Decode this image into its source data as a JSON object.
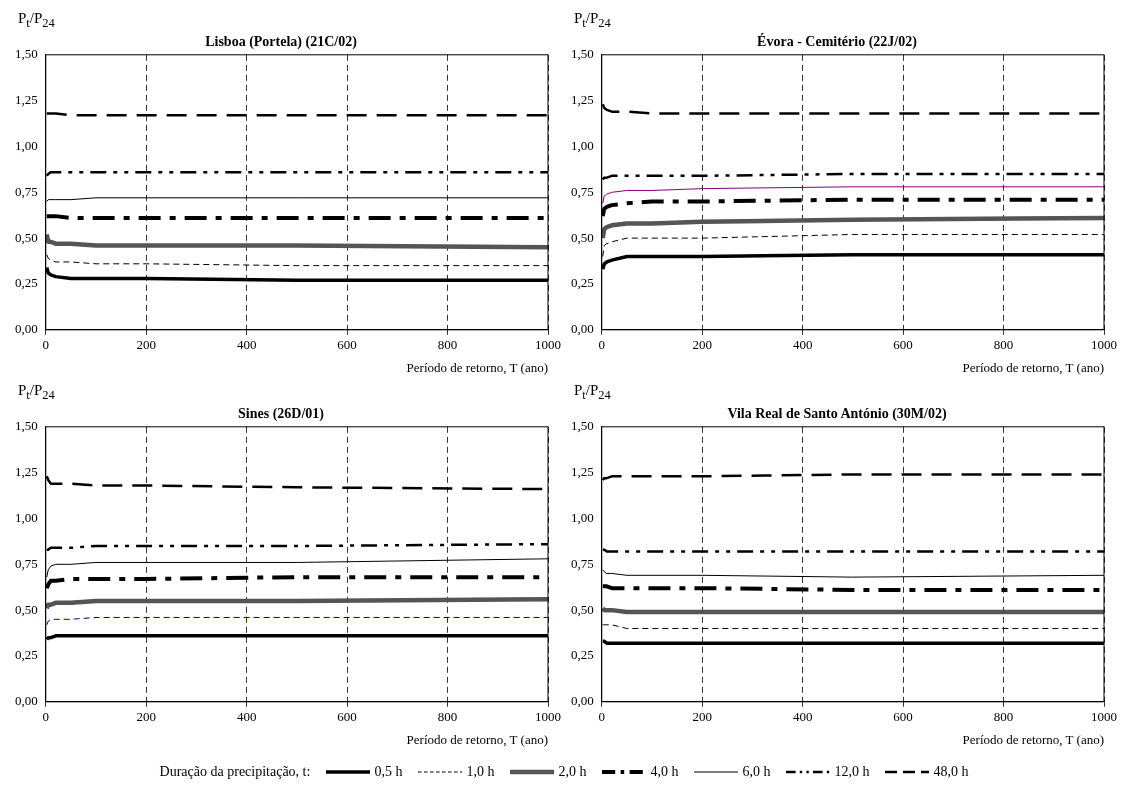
{
  "chart_data": [
    {
      "type": "line",
      "title": "Lisboa (Portela) (21C/02)",
      "xlabel": "Período de retorno, T (ano)",
      "ylabel": "P$_{t}$/P$_{24}$",
      "x": [
        2,
        5,
        10,
        20,
        50,
        100,
        200,
        500,
        1000
      ],
      "xlim": [
        0,
        1000
      ],
      "xticks": [
        0,
        200,
        400,
        600,
        800,
        1000
      ],
      "ylim": [
        0,
        1.5
      ],
      "yticks": [
        {
          "value": 0,
          "label": "0,00"
        },
        {
          "value": 0.25,
          "label": "0,25"
        },
        {
          "value": 0.5,
          "label": "0,50"
        },
        {
          "value": 0.75,
          "label": "0,75"
        },
        {
          "value": 1,
          "label": "1,00"
        },
        {
          "value": 1.25,
          "label": "1,25"
        },
        {
          "value": 1.5,
          "label": "1,50"
        }
      ],
      "grid": "x",
      "marker": "none",
      "legend": "bottom",
      "legend_title": "Duração da precipitação, t:",
      "series": [
        {
          "name": "0,5 h",
          "color": "#000000",
          "line_style": "solid",
          "values": [
            0.34,
            0.31,
            0.3,
            0.29,
            0.28,
            0.28,
            0.28,
            0.27,
            0.27
          ]
        },
        {
          "name": "1,0 h",
          "color": "#000000",
          "line_style": "dashed",
          "values": [
            0.41,
            0.39,
            0.38,
            0.37,
            0.37,
            0.36,
            0.36,
            0.35,
            0.35
          ]
        },
        {
          "name": "2,0 h",
          "color": "#555555",
          "line_style": "solid",
          "values": [
            0.52,
            0.48,
            0.48,
            0.47,
            0.47,
            0.46,
            0.46,
            0.46,
            0.45
          ]
        },
        {
          "name": "4,0 h",
          "color": "#000000",
          "line_style": "dashed",
          "values": [
            0.62,
            0.62,
            0.62,
            0.62,
            0.61,
            0.61,
            0.61,
            0.61,
            0.61
          ]
        },
        {
          "name": "6,0 h",
          "color": "#000000",
          "line_style": "solid",
          "values": [
            0.7,
            0.71,
            0.71,
            0.71,
            0.71,
            0.72,
            0.72,
            0.72,
            0.72
          ]
        },
        {
          "name": "12,0 h",
          "color": "#000000",
          "line_style": "dashed",
          "values": [
            0.84,
            0.85,
            0.86,
            0.86,
            0.86,
            0.86,
            0.86,
            0.86,
            0.86
          ]
        },
        {
          "name": "48,0 h",
          "color": "#000000",
          "line_style": "dashed",
          "values": [
            1.18,
            1.18,
            1.18,
            1.18,
            1.17,
            1.17,
            1.17,
            1.17,
            1.17
          ]
        }
      ]
    },
    {
      "type": "line",
      "title": "Évora - Cemitério (22J/02)",
      "xlabel": "Período de retorno, T (ano)",
      "ylabel": "P$_{t}$/P$_{24}$",
      "x": [
        2,
        5,
        10,
        20,
        50,
        100,
        200,
        500,
        1000
      ],
      "xlim": [
        0,
        1000
      ],
      "xticks": [
        0,
        200,
        400,
        600,
        800,
        1000
      ],
      "ylim": [
        0,
        1.5
      ],
      "yticks": [
        {
          "value": 0,
          "label": "0,00"
        },
        {
          "value": 0.25,
          "label": "0,25"
        },
        {
          "value": 0.5,
          "label": "0,50"
        },
        {
          "value": 0.75,
          "label": "0,75"
        },
        {
          "value": 1,
          "label": "1,00"
        },
        {
          "value": 1.25,
          "label": "1,25"
        },
        {
          "value": 1.5,
          "label": "1,50"
        }
      ],
      "grid": "x",
      "marker": "none",
      "series": [
        {
          "color": "#000000",
          "line_style": "solid",
          "values": [
            0.33,
            0.36,
            0.37,
            0.38,
            0.4,
            0.4,
            0.4,
            0.41,
            0.41
          ]
        },
        {
          "color": "#000000",
          "line_style": "dashed",
          "values": [
            0.4,
            0.46,
            0.47,
            0.48,
            0.5,
            0.5,
            0.5,
            0.52,
            0.52
          ]
        },
        {
          "color": "#555555",
          "line_style": "solid",
          "values": [
            0.5,
            0.55,
            0.56,
            0.57,
            0.58,
            0.58,
            0.59,
            0.6,
            0.61
          ]
        },
        {
          "color": "#000000",
          "line_style": "dashed",
          "values": [
            0.62,
            0.66,
            0.67,
            0.68,
            0.69,
            0.7,
            0.7,
            0.71,
            0.71
          ]
        },
        {
          "color": "#800080",
          "line_style": "solid",
          "values": [
            0.69,
            0.73,
            0.74,
            0.75,
            0.76,
            0.76,
            0.77,
            0.78,
            0.78
          ]
        },
        {
          "color": "#000000",
          "line_style": "dashed",
          "values": [
            0.82,
            0.83,
            0.83,
            0.84,
            0.84,
            0.84,
            0.84,
            0.85,
            0.85
          ]
        },
        {
          "color": "#000000",
          "line_style": "dashed",
          "values": [
            1.23,
            1.21,
            1.2,
            1.19,
            1.19,
            1.18,
            1.18,
            1.18,
            1.18
          ]
        }
      ]
    },
    {
      "type": "line",
      "title": "Sines (26D/01)",
      "xlabel": "Período de retorno, T (ano)",
      "ylabel": "P$_{t}$/P$_{24}$",
      "x": [
        2,
        5,
        10,
        20,
        50,
        100,
        200,
        500,
        1000
      ],
      "xlim": [
        0,
        1000
      ],
      "xticks": [
        0,
        200,
        400,
        600,
        800,
        1000
      ],
      "ylim": [
        0,
        1.5
      ],
      "yticks": [
        {
          "value": 0,
          "label": "0,00"
        },
        {
          "value": 0.25,
          "label": "0,25"
        },
        {
          "value": 0.5,
          "label": "0,50"
        },
        {
          "value": 0.75,
          "label": "0,75"
        },
        {
          "value": 1,
          "label": "1,00"
        },
        {
          "value": 1.25,
          "label": "1,25"
        },
        {
          "value": 1.5,
          "label": "1,50"
        }
      ],
      "grid": "x",
      "marker": "none",
      "series": [
        {
          "color": "#000000",
          "line_style": "solid",
          "values": [
            0.34,
            0.35,
            0.35,
            0.36,
            0.36,
            0.36,
            0.36,
            0.36,
            0.36
          ]
        },
        {
          "color": "#000080",
          "line_style": "dashed",
          "values": [
            0.42,
            0.44,
            0.45,
            0.45,
            0.45,
            0.46,
            0.46,
            0.46,
            0.46
          ]
        },
        {
          "color": "#555555",
          "line_style": "solid",
          "values": [
            0.51,
            0.53,
            0.53,
            0.54,
            0.54,
            0.55,
            0.55,
            0.55,
            0.56
          ]
        },
        {
          "color": "#000000",
          "line_style": "dashed",
          "values": [
            0.62,
            0.64,
            0.66,
            0.66,
            0.67,
            0.67,
            0.67,
            0.68,
            0.68
          ]
        },
        {
          "color": "#000000",
          "line_style": "solid",
          "values": [
            0.68,
            0.72,
            0.74,
            0.75,
            0.75,
            0.76,
            0.76,
            0.76,
            0.78
          ]
        },
        {
          "color": "#000000",
          "line_style": "dashed",
          "values": [
            0.83,
            0.83,
            0.84,
            0.84,
            0.84,
            0.85,
            0.85,
            0.85,
            0.86
          ]
        },
        {
          "color": "#000000",
          "line_style": "dashed",
          "values": [
            1.23,
            1.21,
            1.19,
            1.19,
            1.19,
            1.18,
            1.18,
            1.17,
            1.16
          ]
        }
      ]
    },
    {
      "type": "line",
      "title": "Vila Real de Santo António (30M/02)",
      "xlabel": "Período de retorno, T (ano)",
      "ylabel": "P$_{t}$/P$_{24}$",
      "x": [
        2,
        5,
        10,
        20,
        50,
        100,
        200,
        500,
        1000
      ],
      "xlim": [
        0,
        1000
      ],
      "xticks": [
        0,
        200,
        400,
        600,
        800,
        1000
      ],
      "ylim": [
        0,
        1.5
      ],
      "yticks": [
        {
          "value": 0,
          "label": "0,00"
        },
        {
          "value": 0.25,
          "label": "0,25"
        },
        {
          "value": 0.5,
          "label": "0,50"
        },
        {
          "value": 0.75,
          "label": "0,75"
        },
        {
          "value": 1,
          "label": "1,00"
        },
        {
          "value": 1.25,
          "label": "1,25"
        },
        {
          "value": 1.5,
          "label": "1,50"
        }
      ],
      "grid": "x",
      "marker": "none",
      "series": [
        {
          "color": "#000000",
          "line_style": "solid",
          "values": [
            0.33,
            0.33,
            0.32,
            0.32,
            0.32,
            0.32,
            0.32,
            0.32,
            0.32
          ]
        },
        {
          "color": "#000000",
          "line_style": "dashed",
          "values": [
            0.42,
            0.42,
            0.42,
            0.42,
            0.4,
            0.4,
            0.4,
            0.4,
            0.4
          ]
        },
        {
          "color": "#555555",
          "line_style": "solid",
          "values": [
            0.51,
            0.5,
            0.5,
            0.5,
            0.49,
            0.49,
            0.49,
            0.49,
            0.49
          ]
        },
        {
          "color": "#000000",
          "line_style": "dashed",
          "values": [
            0.63,
            0.63,
            0.63,
            0.62,
            0.62,
            0.62,
            0.62,
            0.61,
            0.61
          ]
        },
        {
          "color": "#000000",
          "line_style": "solid",
          "values": [
            0.72,
            0.71,
            0.7,
            0.7,
            0.69,
            0.69,
            0.69,
            0.68,
            0.69
          ]
        },
        {
          "color": "#000000",
          "line_style": "dashed",
          "values": [
            0.83,
            0.83,
            0.82,
            0.82,
            0.82,
            0.82,
            0.82,
            0.82,
            0.82
          ]
        },
        {
          "color": "#000000",
          "line_style": "dashed",
          "values": [
            1.21,
            1.22,
            1.22,
            1.23,
            1.23,
            1.23,
            1.23,
            1.24,
            1.24
          ]
        }
      ]
    }
  ]
}
